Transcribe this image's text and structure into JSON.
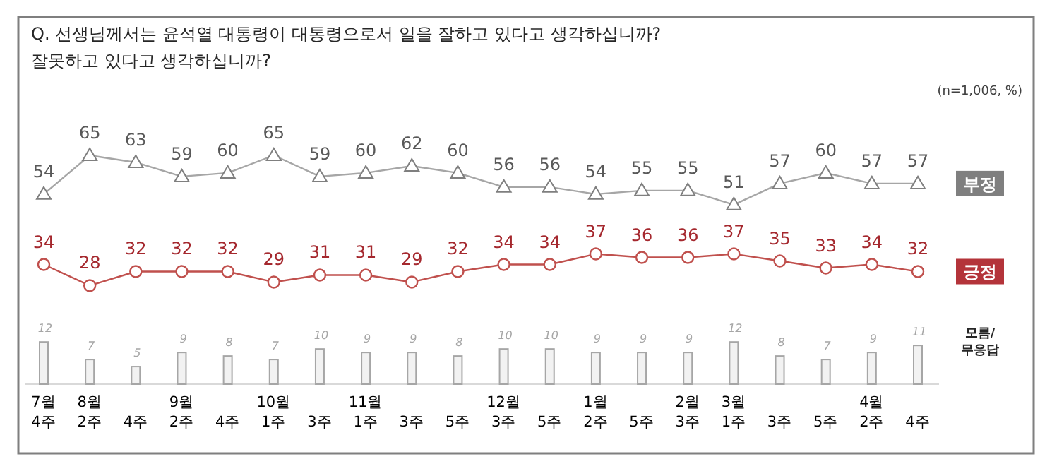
{
  "chart_data": {
    "type": "line",
    "title": "Q. 선생님께서는 윤석열 대통령이 대통령으로서 일을 잘하고 있다고 생각하십니까?\n잘못하고 있다고 생각하십니까?",
    "annotations": [
      "(n=1,006, %)"
    ],
    "categories": [
      "7월\n4주",
      "8월\n2주",
      "4주",
      "9월\n2주",
      "4주",
      "10월\n1주",
      "3주",
      "11월\n1주",
      "3주",
      "5주",
      "12월\n3주",
      "5주",
      "1월\n2주",
      "5주",
      "2월\n3주",
      "3월\n1주",
      "3주",
      "5주",
      "4월\n2주",
      "4주"
    ],
    "data_labels": true,
    "legend": "right",
    "series": [
      {
        "name": "부정",
        "color": "#a6a6a6",
        "marker": "triangle",
        "values": [
          54,
          65,
          63,
          59,
          60,
          65,
          59,
          60,
          62,
          60,
          56,
          56,
          54,
          55,
          55,
          51,
          57,
          60,
          57,
          57
        ]
      },
      {
        "name": "긍정",
        "color": "#c0504d",
        "marker": "circle",
        "values": [
          34,
          28,
          32,
          32,
          32,
          29,
          31,
          31,
          29,
          32,
          34,
          34,
          37,
          36,
          36,
          37,
          35,
          33,
          34,
          32
        ]
      },
      {
        "name": "모름/\n무응답",
        "type": "bar",
        "color": "#f2f2f2",
        "values": [
          12,
          7,
          5,
          9,
          8,
          7,
          10,
          9,
          9,
          8,
          10,
          10,
          9,
          9,
          9,
          12,
          8,
          7,
          9,
          11
        ]
      }
    ]
  }
}
